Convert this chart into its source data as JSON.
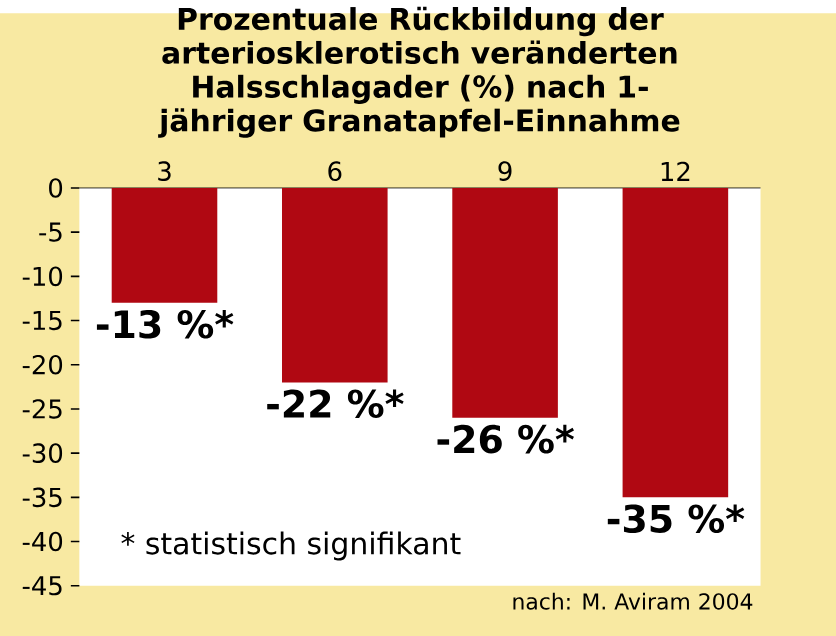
{
  "chart_data": {
    "type": "bar",
    "title": "Prozentuale Rückbildung der arteriosklerotisch veränderten Halsschlagader (%) nach 1-jähriger Granatapfel-Einnahme",
    "categories": [
      "3",
      "6",
      "9",
      "12"
    ],
    "values": [
      -13,
      -22,
      -26,
      -35
    ],
    "value_labels": [
      "-13 %*",
      "-22 %*",
      "-26 %*",
      "-35 %*"
    ],
    "color": "#b00812",
    "ylim": [
      -45,
      0
    ],
    "yticks": [
      0,
      -5,
      -10,
      -15,
      -20,
      -25,
      -30,
      -35,
      -40,
      -45
    ],
    "annotations": [
      "* statistisch signifikant",
      "nach: M. Aviram 2004"
    ]
  }
}
